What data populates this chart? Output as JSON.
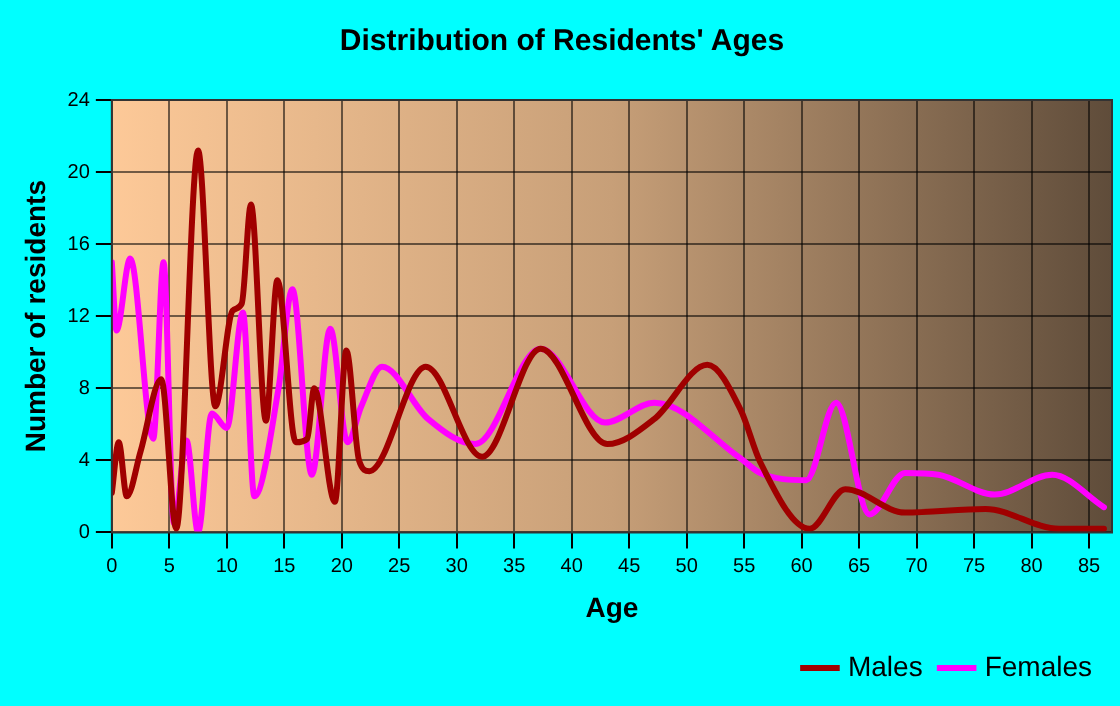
{
  "chart_data": {
    "type": "line",
    "title": "Distribution of Residents' Ages",
    "xlabel": "Age",
    "ylabel": "Number of residents",
    "xlim": [
      0,
      87
    ],
    "xticks": [
      0,
      5,
      10,
      15,
      20,
      25,
      30,
      35,
      40,
      45,
      50,
      55,
      60,
      65,
      70,
      75,
      80,
      85
    ],
    "ylim": [
      0,
      24
    ],
    "yticks": [
      0,
      4,
      8,
      12,
      16,
      20,
      24
    ],
    "grid": true,
    "legend": "bottom right",
    "marker": "none",
    "line_style": "solid",
    "series": [
      {
        "name": "Males",
        "color": "#a00000",
        "x": [
          0,
          0.6,
          1.3,
          2.5,
          4.3,
          5.6,
          7.5,
          9,
          10.5,
          11.3,
          12.1,
          13.4,
          14.4,
          16,
          17,
          17.6,
          19.4,
          20.4,
          21.5,
          22.4,
          27.3,
          32.2,
          37.3,
          43.1,
          47.2,
          51.8,
          54.7,
          56.4,
          60.7,
          63.8,
          69,
          76,
          82.4,
          86.3
        ],
        "values": [
          2.2,
          5,
          2,
          4.5,
          8.5,
          0.2,
          21.2,
          7,
          12.3,
          12.7,
          18.2,
          6.2,
          14,
          5,
          5.2,
          8,
          1.7,
          10.1,
          4,
          3.4,
          9.2,
          4.2,
          10.2,
          4.9,
          6.3,
          9.3,
          6.8,
          3.9,
          0.2,
          2.4,
          1.1,
          1.3,
          0.2,
          0.2
        ]
      },
      {
        "name": "Females",
        "color": "#ff00ff",
        "x": [
          0,
          0.4,
          1.6,
          3.6,
          4.5,
          5.4,
          6.5,
          7.5,
          8.7,
          10,
          11.4,
          12.4,
          14.5,
          15.7,
          17.4,
          19,
          20.5,
          21.7,
          23.5,
          27.5,
          31.6,
          37.3,
          42.9,
          47.2,
          54.7,
          56.4,
          60.4,
          63,
          65.9,
          69,
          71.9,
          76.8,
          81.8,
          86.3
        ],
        "values": [
          15,
          11.2,
          15.2,
          5.2,
          15,
          0.5,
          5.1,
          0,
          6.6,
          5.8,
          12.2,
          2,
          8,
          13.5,
          3.2,
          11.3,
          5,
          7,
          9.2,
          6.3,
          4.9,
          10.2,
          6.1,
          7.2,
          4.1,
          3.3,
          2.9,
          7.2,
          1,
          3.3,
          3.2,
          2.1,
          3.2,
          1.4
        ]
      }
    ]
  }
}
